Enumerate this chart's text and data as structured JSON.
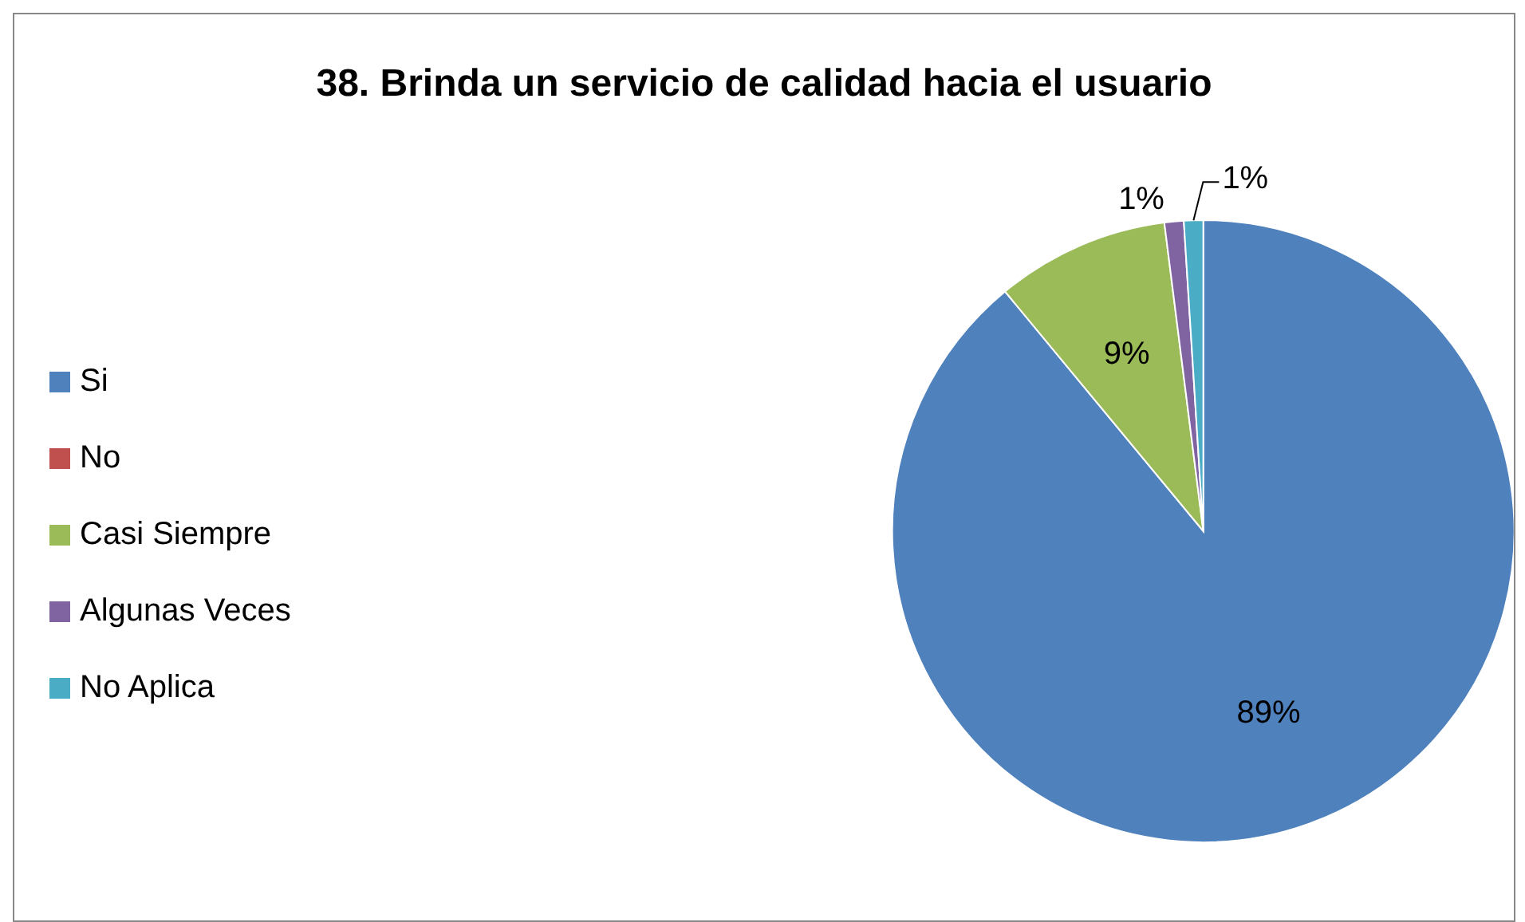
{
  "chart_data": {
    "type": "pie",
    "title": "38. Brinda un servicio de calidad hacia el usuario",
    "categories": [
      "Si",
      "No",
      "Casi Siempre",
      "Algunas Veces",
      "No Aplica"
    ],
    "values": [
      89,
      0,
      9,
      1,
      1
    ],
    "colors": [
      "#4f81bd",
      "#c0504d",
      "#9bbb59",
      "#8064a2",
      "#4bacc6"
    ],
    "value_labels": [
      "89%",
      null,
      "9%",
      "1%",
      "1%"
    ],
    "legend": "left"
  }
}
